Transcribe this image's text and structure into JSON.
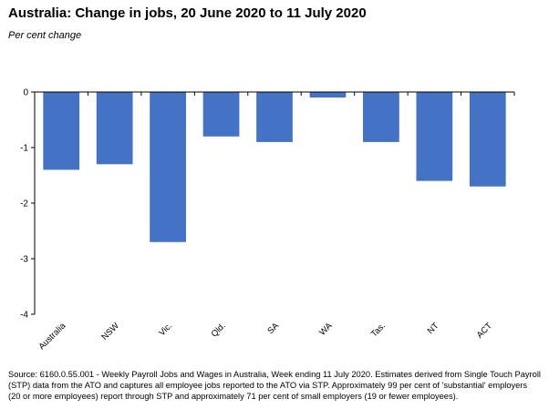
{
  "chart_data": {
    "type": "bar",
    "title": "Australia:  Change in jobs, 20 June 2020 to 11 July 2020",
    "subtitle": "Per cent change",
    "categories": [
      "Australia",
      "NSW",
      "Vic.",
      "Qld.",
      "SA",
      "WA",
      "Tas.",
      "NT",
      "ACT"
    ],
    "values": [
      -1.4,
      -1.3,
      -2.7,
      -0.8,
      -0.9,
      -0.1,
      -0.9,
      -1.6,
      -1.7
    ],
    "ylim": [
      -4,
      0
    ],
    "yticks": [
      0,
      -1,
      -2,
      -3,
      -4
    ],
    "ytick_labels": [
      "0",
      "-1",
      "-2",
      "-3",
      "-4"
    ],
    "grid": false,
    "legend": "none",
    "bar_color": "#4472C4",
    "axis_color": "#000000"
  },
  "source_note": "Source: 6160.0.55.001 - Weekly Payroll Jobs and Wages in Australia, Week ending 11 July 2020.  Estimates derived from Single Touch Payroll (STP) data from the ATO and captures all employee jobs reported to the ATO via STP.  Approximately 99 per cent of 'substantial' employers (20 or more employees) report through STP and approximately 71 per cent of small employers (19 or fewer employees)."
}
